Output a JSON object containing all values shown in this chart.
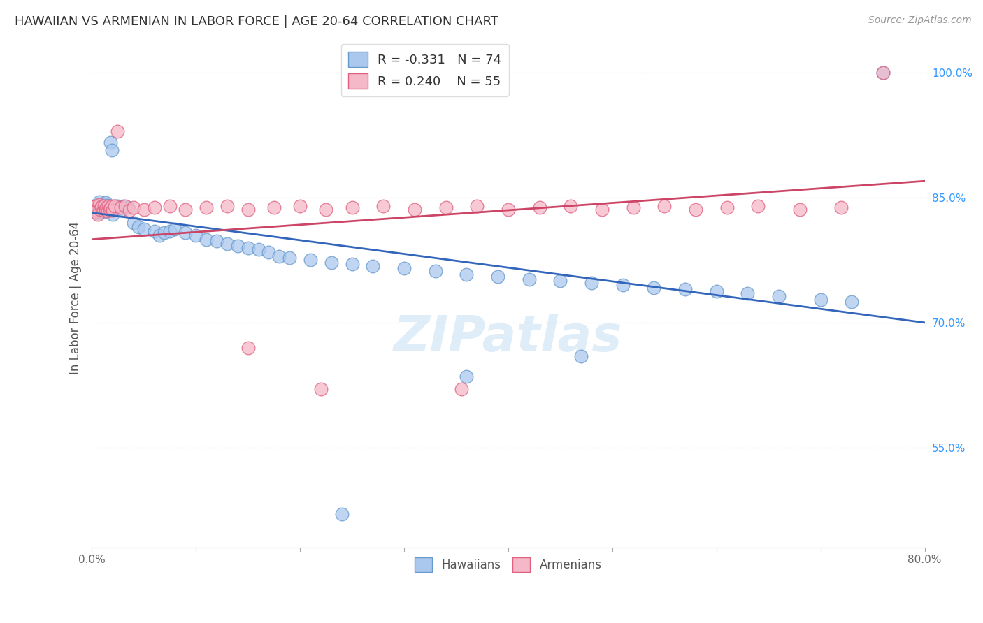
{
  "title": "HAWAIIAN VS ARMENIAN IN LABOR FORCE | AGE 20-64 CORRELATION CHART",
  "source": "Source: ZipAtlas.com",
  "ylabel": "In Labor Force | Age 20-64",
  "x_min": 0.0,
  "x_max": 0.8,
  "y_min": 0.43,
  "y_max": 1.03,
  "y_ticks_right": [
    0.55,
    0.7,
    0.85,
    1.0
  ],
  "y_tick_labels_right": [
    "55.0%",
    "70.0%",
    "85.0%",
    "100.0%"
  ],
  "grid_color": "#cccccc",
  "background_color": "#ffffff",
  "hawaiian_color": "#aac8ee",
  "armenian_color": "#f5b8c8",
  "hawaiian_edge_color": "#6699cc",
  "armenian_edge_color": "#e06080",
  "trend_hawaiian_color": "#3366bb",
  "trend_armenian_color": "#cc4466",
  "legend_hawaiian_label": "R = -0.331   N = 74",
  "legend_armenian_label": "R = 0.240    N = 55",
  "legend_hawaiian_series": "Hawaiians",
  "legend_armenian_series": "Armenians",
  "watermark": "ZIPatlas",
  "hawaiian_x": [
    0.002,
    0.003,
    0.004,
    0.005,
    0.005,
    0.006,
    0.007,
    0.007,
    0.008,
    0.008,
    0.009,
    0.009,
    0.01,
    0.01,
    0.011,
    0.011,
    0.012,
    0.012,
    0.013,
    0.013,
    0.014,
    0.015,
    0.016,
    0.017,
    0.018,
    0.019,
    0.02,
    0.022,
    0.025,
    0.028,
    0.03,
    0.035,
    0.04,
    0.045,
    0.05,
    0.06,
    0.065,
    0.07,
    0.075,
    0.08,
    0.09,
    0.1,
    0.11,
    0.12,
    0.13,
    0.14,
    0.15,
    0.16,
    0.17,
    0.18,
    0.19,
    0.21,
    0.23,
    0.25,
    0.27,
    0.3,
    0.33,
    0.36,
    0.39,
    0.42,
    0.45,
    0.48,
    0.51,
    0.54,
    0.57,
    0.6,
    0.63,
    0.66,
    0.7,
    0.73,
    0.47,
    0.36,
    0.76,
    0.24
  ],
  "hawaiian_y": [
    0.84,
    0.835,
    0.838,
    0.832,
    0.841,
    0.835,
    0.845,
    0.838,
    0.833,
    0.842,
    0.836,
    0.84,
    0.838,
    0.834,
    0.842,
    0.837,
    0.839,
    0.833,
    0.844,
    0.836,
    0.838,
    0.841,
    0.835,
    0.839,
    0.916,
    0.907,
    0.83,
    0.84,
    0.84,
    0.835,
    0.84,
    0.838,
    0.82,
    0.815,
    0.812,
    0.81,
    0.805,
    0.808,
    0.81,
    0.812,
    0.808,
    0.805,
    0.8,
    0.798,
    0.795,
    0.792,
    0.79,
    0.788,
    0.785,
    0.78,
    0.778,
    0.775,
    0.772,
    0.77,
    0.768,
    0.765,
    0.762,
    0.758,
    0.755,
    0.752,
    0.75,
    0.748,
    0.745,
    0.742,
    0.74,
    0.738,
    0.735,
    0.732,
    0.728,
    0.725,
    0.66,
    0.635,
    1.0,
    0.47
  ],
  "armenian_x": [
    0.002,
    0.003,
    0.004,
    0.005,
    0.006,
    0.007,
    0.008,
    0.009,
    0.01,
    0.011,
    0.012,
    0.013,
    0.014,
    0.015,
    0.016,
    0.017,
    0.018,
    0.019,
    0.02,
    0.022,
    0.025,
    0.028,
    0.032,
    0.036,
    0.04,
    0.05,
    0.06,
    0.075,
    0.09,
    0.11,
    0.13,
    0.15,
    0.175,
    0.2,
    0.225,
    0.25,
    0.28,
    0.31,
    0.34,
    0.37,
    0.4,
    0.43,
    0.46,
    0.49,
    0.52,
    0.55,
    0.58,
    0.61,
    0.64,
    0.68,
    0.72,
    0.76,
    0.15,
    0.22,
    0.355
  ],
  "armenian_y": [
    0.838,
    0.833,
    0.84,
    0.835,
    0.83,
    0.842,
    0.836,
    0.838,
    0.84,
    0.835,
    0.84,
    0.836,
    0.838,
    0.834,
    0.84,
    0.836,
    0.838,
    0.84,
    0.835,
    0.84,
    0.93,
    0.838,
    0.84,
    0.835,
    0.838,
    0.836,
    0.838,
    0.84,
    0.836,
    0.838,
    0.84,
    0.836,
    0.838,
    0.84,
    0.836,
    0.838,
    0.84,
    0.836,
    0.838,
    0.84,
    0.836,
    0.838,
    0.84,
    0.836,
    0.838,
    0.84,
    0.836,
    0.838,
    0.84,
    0.836,
    0.838,
    1.0,
    0.67,
    0.62,
    0.62
  ],
  "trend_hawaiian_x0": 0.0,
  "trend_hawaiian_y0": 0.832,
  "trend_hawaiian_x1": 0.8,
  "trend_hawaiian_y1": 0.7,
  "trend_armenian_x0": 0.0,
  "trend_armenian_y0": 0.8,
  "trend_armenian_x1": 0.8,
  "trend_armenian_y1": 0.87
}
